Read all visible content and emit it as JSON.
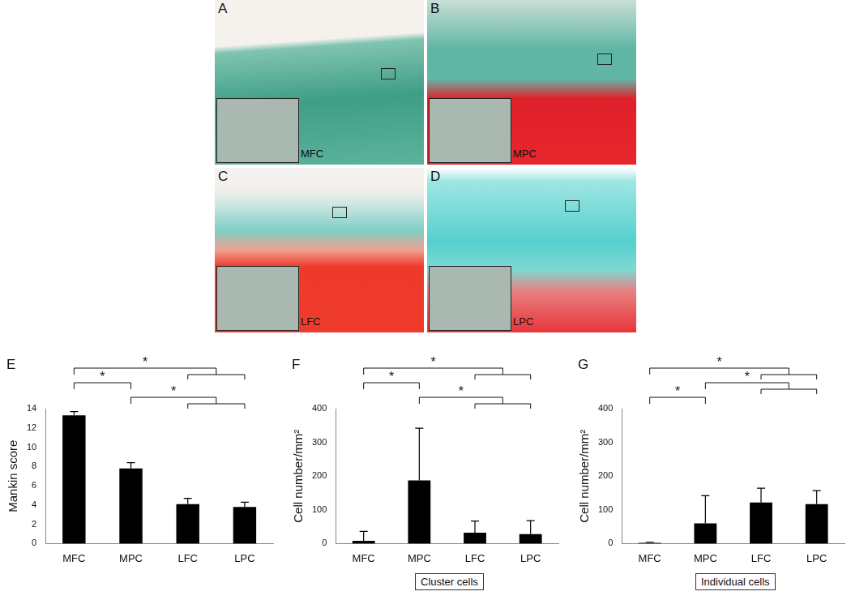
{
  "panels": [
    {
      "letter": "A",
      "label": "MFC"
    },
    {
      "letter": "B",
      "label": "MPC"
    },
    {
      "letter": "C",
      "label": "LFC"
    },
    {
      "letter": "D",
      "label": "LPC"
    }
  ],
  "chart_data": [
    {
      "type": "bar",
      "panel": "E",
      "y_label": "Mankin score",
      "categories": [
        "MFC",
        "MPC",
        "LFC",
        "LPC"
      ],
      "values": [
        13.3,
        7.8,
        4.1,
        3.8
      ],
      "errors": [
        0.4,
        0.6,
        0.6,
        0.5
      ],
      "color": "#000000",
      "ylim": [
        0,
        14
      ],
      "yticks": [
        0,
        2,
        4,
        6,
        8,
        10,
        12,
        14
      ],
      "grid": false,
      "significance": [
        {
          "from": "MFC",
          "to": [
            "LFC",
            "LPC"
          ],
          "label": "*"
        },
        {
          "from": "MFC",
          "to": [
            "MPC"
          ],
          "label": "*"
        },
        {
          "from": "MPC",
          "to": [
            "LFC",
            "LPC"
          ],
          "label": "*"
        }
      ]
    },
    {
      "type": "bar",
      "panel": "F",
      "y_label": "Cell number/mm²",
      "caption": "Cluster cells",
      "categories": [
        "MFC",
        "MPC",
        "LFC",
        "LPC"
      ],
      "values": [
        8,
        187,
        32,
        28
      ],
      "errors": [
        28,
        155,
        35,
        40
      ],
      "color": "#000000",
      "ylim": [
        0,
        400
      ],
      "yticks": [
        0,
        100,
        200,
        300,
        400
      ],
      "grid": false,
      "significance": [
        {
          "from": "MFC",
          "to": [
            "LFC",
            "LPC"
          ],
          "label": "*"
        },
        {
          "from": "MFC",
          "to": [
            "MPC"
          ],
          "label": "*"
        },
        {
          "from": "MPC",
          "to": [
            "LFC",
            "LPC"
          ],
          "label": "*"
        }
      ]
    },
    {
      "type": "bar",
      "panel": "G",
      "y_label": "Cell number/mm²",
      "caption": "Individual cells",
      "categories": [
        "MFC",
        "MPC",
        "LFC",
        "LPC"
      ],
      "values": [
        2,
        60,
        122,
        117
      ],
      "errors": [
        2,
        82,
        42,
        40
      ],
      "color": "#000000",
      "ylim": [
        0,
        400
      ],
      "yticks": [
        0,
        100,
        200,
        300,
        400
      ],
      "grid": false,
      "significance": [
        {
          "from": "MFC",
          "to": [
            "LFC",
            "LPC"
          ],
          "label": "*"
        },
        {
          "from": "MPC",
          "to": [
            "LFC",
            "LPC"
          ],
          "label": "*"
        },
        {
          "from": "MFC",
          "to": [
            "MPC"
          ],
          "label": "*"
        }
      ]
    }
  ]
}
